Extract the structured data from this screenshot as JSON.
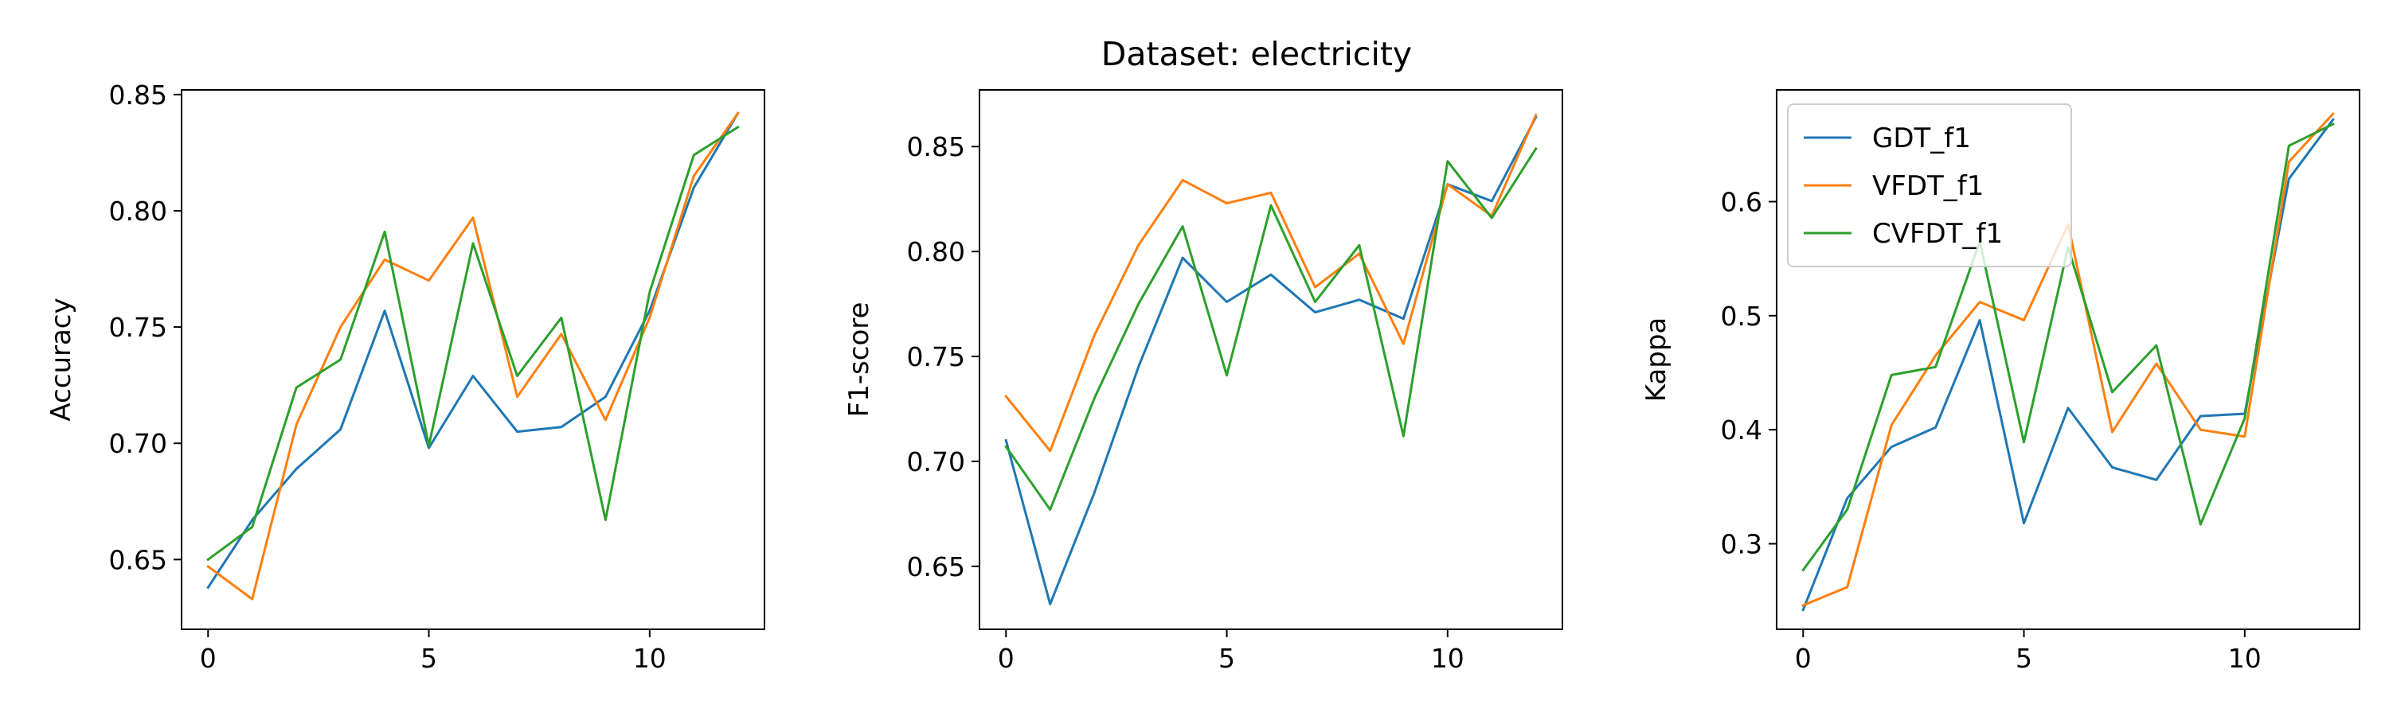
{
  "figure": {
    "title": "Dataset: electricity"
  },
  "colors": {
    "GDT_f1": "#1f77b4",
    "VFDT_f1": "#ff7f0e",
    "CVFDT_f1": "#2ca02c"
  },
  "chart_data": [
    {
      "type": "line",
      "title": "",
      "xlabel": "",
      "ylabel": "Accuracy",
      "xlim": [
        -0.6,
        12.6
      ],
      "ylim": [
        0.62,
        0.852
      ],
      "xticks": [
        0,
        5,
        10
      ],
      "yticks": [
        0.65,
        0.7,
        0.75,
        0.8,
        0.85
      ],
      "ytick_labels": [
        "0.65",
        "0.70",
        "0.75",
        "0.80",
        "0.85"
      ],
      "grid": false,
      "x": [
        0,
        1,
        2,
        3,
        4,
        5,
        6,
        7,
        8,
        9,
        10,
        11,
        12
      ],
      "series": [
        {
          "color": "#1f77b4",
          "values": [
            0.638,
            0.667,
            0.689,
            0.706,
            0.757,
            0.698,
            0.729,
            0.705,
            0.707,
            0.72,
            0.757,
            0.81,
            0.842
          ]
        },
        {
          "color": "#ff7f0e",
          "values": [
            0.647,
            0.633,
            0.708,
            0.75,
            0.779,
            0.77,
            0.797,
            0.72,
            0.747,
            0.71,
            0.754,
            0.815,
            0.842
          ]
        },
        {
          "color": "#2ca02c",
          "values": [
            0.65,
            0.664,
            0.724,
            0.736,
            0.791,
            0.699,
            0.786,
            0.729,
            0.754,
            0.667,
            0.765,
            0.824,
            0.836
          ]
        }
      ]
    },
    {
      "type": "line",
      "title": "",
      "xlabel": "",
      "ylabel": "F1-score",
      "xlim": [
        -0.6,
        12.6
      ],
      "ylim": [
        0.62,
        0.877
      ],
      "xticks": [
        0,
        5,
        10
      ],
      "yticks": [
        0.65,
        0.7,
        0.75,
        0.8,
        0.85
      ],
      "ytick_labels": [
        "0.65",
        "0.70",
        "0.75",
        "0.80",
        "0.85"
      ],
      "grid": false,
      "x": [
        0,
        1,
        2,
        3,
        4,
        5,
        6,
        7,
        8,
        9,
        10,
        11,
        12
      ],
      "series": [
        {
          "color": "#1f77b4",
          "values": [
            0.71,
            0.632,
            0.685,
            0.745,
            0.797,
            0.776,
            0.789,
            0.771,
            0.777,
            0.768,
            0.832,
            0.824,
            0.864
          ]
        },
        {
          "color": "#ff7f0e",
          "values": [
            0.731,
            0.705,
            0.76,
            0.803,
            0.834,
            0.823,
            0.828,
            0.783,
            0.799,
            0.756,
            0.832,
            0.817,
            0.865
          ]
        },
        {
          "color": "#2ca02c",
          "values": [
            0.707,
            0.677,
            0.73,
            0.775,
            0.812,
            0.741,
            0.822,
            0.776,
            0.803,
            0.712,
            0.843,
            0.816,
            0.849
          ]
        }
      ]
    },
    {
      "type": "line",
      "title": "",
      "xlabel": "",
      "ylabel": "Kappa",
      "xlim": [
        -0.6,
        12.6
      ],
      "ylim": [
        0.225,
        0.698
      ],
      "xticks": [
        0,
        5,
        10
      ],
      "yticks": [
        0.3,
        0.4,
        0.5,
        0.6
      ],
      "ytick_labels": [
        "0.3",
        "0.4",
        "0.5",
        "0.6"
      ],
      "grid": false,
      "legend_position": "top-left",
      "x": [
        0,
        1,
        2,
        3,
        4,
        5,
        6,
        7,
        8,
        9,
        10,
        11,
        12
      ],
      "series": [
        {
          "name": "GDT_f1",
          "color": "#1f77b4",
          "values": [
            0.242,
            0.34,
            0.385,
            0.402,
            0.496,
            0.318,
            0.419,
            0.367,
            0.356,
            0.412,
            0.414,
            0.62,
            0.672
          ]
        },
        {
          "name": "VFDT_f1",
          "color": "#ff7f0e",
          "values": [
            0.246,
            0.262,
            0.404,
            0.465,
            0.512,
            0.496,
            0.58,
            0.398,
            0.458,
            0.4,
            0.394,
            0.635,
            0.677
          ]
        },
        {
          "name": "CVFDT_f1",
          "color": "#2ca02c",
          "values": [
            0.277,
            0.33,
            0.448,
            0.455,
            0.565,
            0.389,
            0.56,
            0.433,
            0.474,
            0.317,
            0.41,
            0.649,
            0.668
          ]
        }
      ]
    }
  ]
}
